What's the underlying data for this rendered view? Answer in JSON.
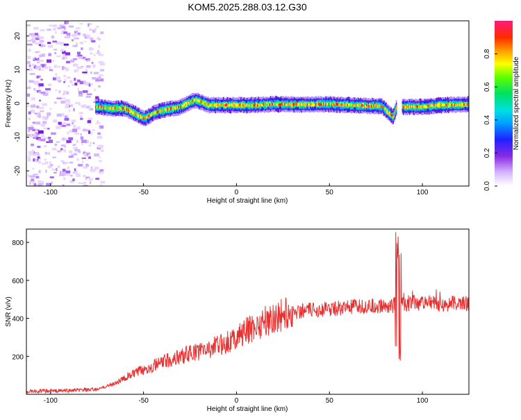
{
  "title": "KOM5.2025.288.03.12.G30",
  "chart_data": [
    {
      "type": "heatmap",
      "xlabel": "Height of straight line (km)",
      "ylabel": "Frequency (Hz)",
      "xlim": [
        -113,
        125
      ],
      "ylim": [
        -24.5,
        24.5
      ],
      "xticks": [
        -100,
        -50,
        0,
        50,
        100
      ],
      "yticks": [
        -20,
        -10,
        0,
        10,
        20
      ],
      "colorbar": {
        "label": "Normalized spectral amplitude",
        "range": [
          0,
          1
        ],
        "ticks": [
          "0.0",
          "0.2",
          "0.4",
          "0.6",
          "0.8"
        ]
      },
      "ridge_frequency_hz": {
        "x": [
          -75,
          -68,
          -60,
          -55,
          -50,
          -45,
          -40,
          -30,
          -25,
          -22,
          -15,
          -10,
          0,
          10,
          20,
          30,
          40,
          50,
          60,
          70,
          78,
          80,
          82,
          84,
          86,
          90,
          100,
          110,
          125
        ],
        "y": [
          -1,
          -1.5,
          -1.5,
          -3,
          -4.5,
          -3,
          -2,
          -1,
          0.5,
          1,
          -0.5,
          -0.5,
          -0.5,
          -0.5,
          -0.2,
          -0.3,
          -0.3,
          -0.2,
          -0.5,
          -0.7,
          -0.8,
          -2,
          -3,
          -4,
          -1,
          -1,
          -1,
          -0.5,
          -0.3
        ]
      },
      "noise_region_km": [
        -113,
        -73
      ]
    },
    {
      "type": "line",
      "xlabel": "Height of straight line (km)",
      "ylabel": "SNR (v/v)",
      "xlim": [
        -113,
        125
      ],
      "ylim": [
        0,
        870
      ],
      "xticks": [
        -100,
        -50,
        0,
        50,
        100
      ],
      "yticks": [
        200,
        400,
        600,
        800
      ],
      "color": "#e83030",
      "trend": {
        "x": [
          -113,
          -90,
          -75,
          -65,
          -55,
          -45,
          -35,
          -25,
          -15,
          -5,
          5,
          15,
          25,
          35,
          50,
          65,
          80,
          85,
          90,
          100,
          110,
          125
        ],
        "y": [
          15,
          20,
          25,
          60,
          110,
          150,
          185,
          215,
          240,
          275,
          330,
          385,
          420,
          440,
          450,
          460,
          465,
          470,
          480,
          480,
          475,
          480
        ]
      },
      "spike": {
        "x": 87,
        "max": 860,
        "min": 150
      }
    }
  ]
}
